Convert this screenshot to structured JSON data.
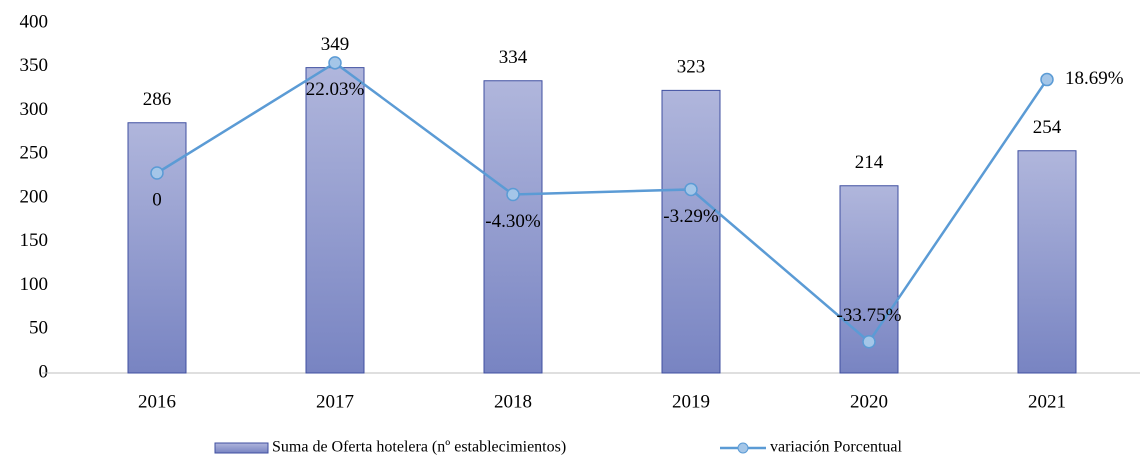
{
  "chart_data": {
    "type": "bar-line",
    "categories": [
      "2016",
      "2017",
      "2018",
      "2019",
      "2020",
      "2021"
    ],
    "series": [
      {
        "name": "Suma de Oferta hotelera (nº establecimientos)",
        "type": "bar",
        "color": "#8e98cc",
        "values": [
          286,
          349,
          334,
          323,
          214,
          254
        ]
      },
      {
        "name": "variación Porcentual",
        "type": "line",
        "axis": "y2",
        "color": "#5b9bd5",
        "values": [
          0,
          22.03,
          -4.3,
          -3.29,
          -33.75,
          18.69
        ],
        "value_labels": [
          "0",
          "22.03%",
          "-4.30%",
          "-3.29%",
          "-33.75%",
          "18.69%"
        ]
      }
    ],
    "ylim": [
      0,
      400
    ],
    "yticks": [
      0,
      50,
      100,
      150,
      200,
      250,
      300,
      350,
      400
    ],
    "y2lim": [
      -40,
      30
    ],
    "grid": false,
    "legend": "bottom"
  }
}
